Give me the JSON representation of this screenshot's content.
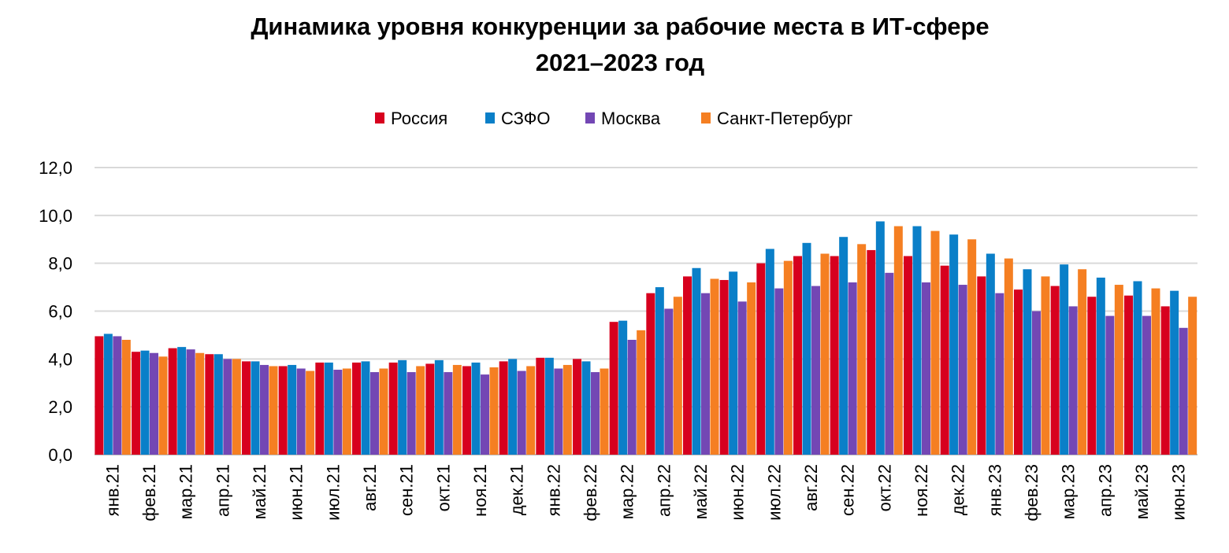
{
  "chart_data": {
    "type": "bar",
    "title": "Динамика уровня конкуренции за рабочие места в ИТ-сфере",
    "subtitle": "2021–2023 год",
    "xlabel": "",
    "ylabel": "",
    "ylim": [
      0,
      12
    ],
    "yticks": [
      "0,0",
      "2,0",
      "4,0",
      "6,0",
      "8,0",
      "10,0",
      "12,0"
    ],
    "grid": true,
    "legend_position": "top",
    "categories": [
      "янв.21",
      "фев.21",
      "мар.21",
      "апр.21",
      "май.21",
      "июн.21",
      "июл.21",
      "авг.21",
      "сен.21",
      "окт.21",
      "ноя.21",
      "дек.21",
      "янв.22",
      "фев.22",
      "мар.22",
      "апр.22",
      "май.22",
      "июн.22",
      "июл.22",
      "авг.22",
      "сен.22",
      "окт.22",
      "ноя.22",
      "дек.22",
      "янв.23",
      "фев.23",
      "мар.23",
      "апр.23",
      "май.23",
      "июн.23"
    ],
    "series": [
      {
        "name": "Россия",
        "color": "#d7001e",
        "values": [
          4.95,
          4.3,
          4.45,
          4.2,
          3.9,
          3.7,
          3.85,
          3.85,
          3.85,
          3.8,
          3.7,
          3.9,
          4.05,
          4.0,
          5.55,
          6.75,
          7.45,
          7.3,
          8.0,
          8.3,
          8.3,
          8.55,
          8.3,
          7.9,
          7.45,
          6.9,
          7.05,
          6.6,
          6.65,
          6.2
        ]
      },
      {
        "name": "СЗФО",
        "color": "#0a7fc8",
        "values": [
          5.05,
          4.35,
          4.5,
          4.2,
          3.9,
          3.75,
          3.85,
          3.9,
          3.95,
          3.95,
          3.85,
          4.0,
          4.05,
          3.9,
          5.6,
          7.0,
          7.8,
          7.65,
          8.6,
          8.85,
          9.1,
          9.75,
          9.55,
          9.2,
          8.4,
          7.75,
          7.95,
          7.4,
          7.25,
          6.85
        ]
      },
      {
        "name": "Москва",
        "color": "#7347b4",
        "values": [
          4.95,
          4.25,
          4.4,
          4.0,
          3.75,
          3.6,
          3.55,
          3.45,
          3.45,
          3.45,
          3.35,
          3.5,
          3.6,
          3.45,
          4.8,
          6.1,
          6.75,
          6.4,
          6.95,
          7.05,
          7.2,
          7.6,
          7.2,
          7.1,
          6.75,
          6.0,
          6.2,
          5.8,
          5.8,
          5.3
        ]
      },
      {
        "name": "Санкт-Петербург",
        "color": "#f57f22",
        "values": [
          4.8,
          4.1,
          4.25,
          4.0,
          3.7,
          3.5,
          3.6,
          3.6,
          3.7,
          3.75,
          3.65,
          3.7,
          3.75,
          3.6,
          5.2,
          6.6,
          7.35,
          7.2,
          8.1,
          8.4,
          8.8,
          9.55,
          9.35,
          9.0,
          8.2,
          7.45,
          7.75,
          7.1,
          6.95,
          6.6
        ]
      }
    ]
  }
}
